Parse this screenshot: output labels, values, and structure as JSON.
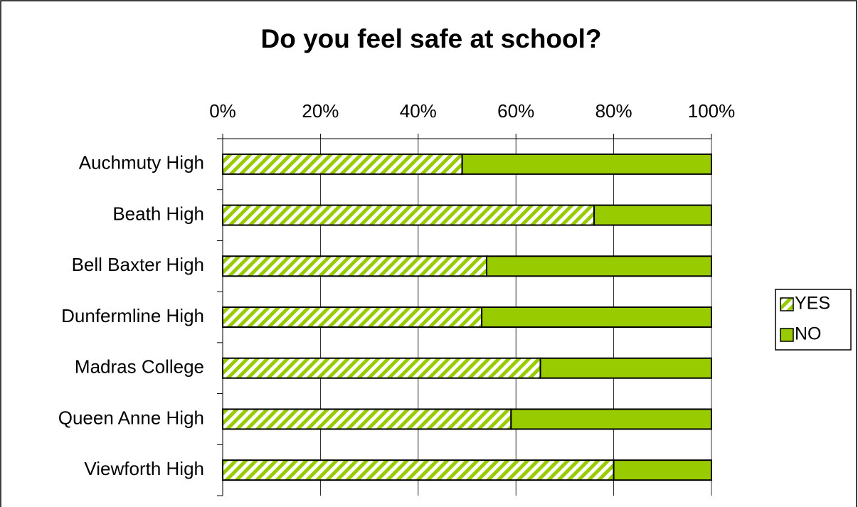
{
  "chart_data": {
    "type": "stacked-bar-horizontal",
    "title": "Do you feel safe at school?",
    "categories": [
      "Auchmuty High",
      "Beath High",
      "Bell Baxter High",
      "Dunfermline High",
      "Madras College",
      "Queen Anne High",
      "Viewforth High"
    ],
    "series": [
      {
        "name": "YES",
        "color": "#99cc00",
        "fill_style": "diagonal-hatch",
        "values": [
          49,
          76,
          54,
          53,
          65,
          59,
          80
        ]
      },
      {
        "name": "NO",
        "color": "#99cc00",
        "fill_style": "solid",
        "values": [
          51,
          24,
          46,
          47,
          35,
          41,
          20
        ]
      }
    ],
    "xlim": [
      0,
      100
    ],
    "xticks": [
      {
        "value": 0,
        "label": "0%"
      },
      {
        "value": 20,
        "label": "20%"
      },
      {
        "value": 40,
        "label": "40%"
      },
      {
        "value": 60,
        "label": "60%"
      },
      {
        "value": 80,
        "label": "80%"
      },
      {
        "value": 100,
        "label": "100%"
      }
    ],
    "grid": true,
    "legend": "right"
  }
}
